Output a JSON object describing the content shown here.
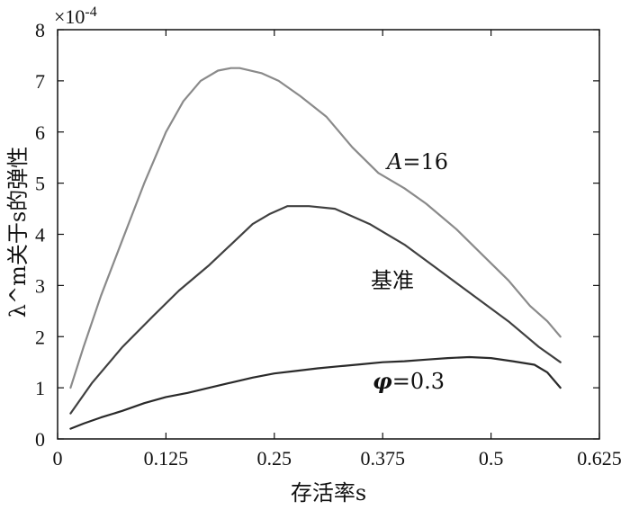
{
  "chart_data": {
    "type": "line",
    "xlabel": "存活率s",
    "ylabel": "λ^m关于s的弹性",
    "y_multiplier": "×10",
    "y_multiplier_exp": "-4",
    "xlim": [
      0,
      0.625
    ],
    "ylim": [
      0,
      8
    ],
    "xticks": [
      0,
      0.125,
      0.25,
      0.375,
      0.5,
      0.625
    ],
    "xtick_labels": [
      "0",
      "0.125",
      "0.25",
      "0.375",
      "0.5",
      "0.625"
    ],
    "yticks": [
      0,
      1,
      2,
      3,
      4,
      5,
      6,
      7,
      8
    ],
    "ytick_labels": [
      "0",
      "1",
      "2",
      "3",
      "4",
      "5",
      "6",
      "7",
      "8"
    ],
    "grid": false,
    "legend": "none",
    "series": [
      {
        "name": "A=16",
        "label_prefix": "A",
        "label_suffix": "=16",
        "color": "#8a8a8a",
        "x": [
          0.015,
          0.03,
          0.05,
          0.075,
          0.1,
          0.125,
          0.145,
          0.165,
          0.185,
          0.2,
          0.21,
          0.235,
          0.255,
          0.28,
          0.31,
          0.34,
          0.37,
          0.4,
          0.425,
          0.46,
          0.49,
          0.52,
          0.545,
          0.565,
          0.58
        ],
        "y": [
          1.0,
          1.8,
          2.8,
          3.9,
          5.0,
          6.0,
          6.6,
          7.0,
          7.2,
          7.25,
          7.25,
          7.15,
          7.0,
          6.7,
          6.3,
          5.7,
          5.2,
          4.9,
          4.6,
          4.1,
          3.6,
          3.1,
          2.6,
          2.3,
          2.0
        ]
      },
      {
        "name": "基准",
        "label_prefix": "基准",
        "label_suffix": "",
        "color": "#404040",
        "x": [
          0.015,
          0.04,
          0.075,
          0.11,
          0.14,
          0.175,
          0.2,
          0.225,
          0.245,
          0.265,
          0.29,
          0.32,
          0.36,
          0.4,
          0.44,
          0.48,
          0.52,
          0.555,
          0.58
        ],
        "y": [
          0.5,
          1.1,
          1.8,
          2.4,
          2.9,
          3.4,
          3.8,
          4.2,
          4.4,
          4.55,
          4.55,
          4.5,
          4.2,
          3.8,
          3.3,
          2.8,
          2.3,
          1.8,
          1.5
        ]
      },
      {
        "name": "φ=0.3",
        "label_prefix": "φ",
        "label_suffix": "=0.3",
        "color": "#2a2a2a",
        "x": [
          0.015,
          0.03,
          0.05,
          0.075,
          0.1,
          0.125,
          0.15,
          0.175,
          0.2,
          0.225,
          0.25,
          0.275,
          0.3,
          0.325,
          0.35,
          0.375,
          0.4,
          0.425,
          0.45,
          0.475,
          0.5,
          0.525,
          0.55,
          0.565,
          0.58
        ],
        "y": [
          0.2,
          0.3,
          0.42,
          0.55,
          0.7,
          0.82,
          0.9,
          1.0,
          1.1,
          1.2,
          1.28,
          1.33,
          1.38,
          1.42,
          1.46,
          1.5,
          1.52,
          1.55,
          1.58,
          1.6,
          1.58,
          1.52,
          1.45,
          1.3,
          1.0
        ]
      }
    ]
  }
}
